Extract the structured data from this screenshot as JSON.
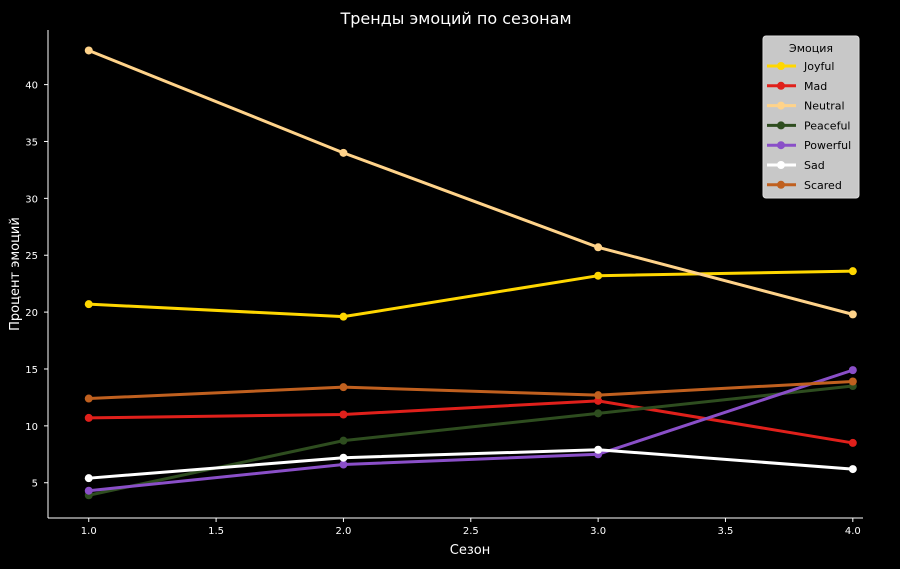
{
  "chart_data": {
    "type": "line",
    "title": "Тренды эмоций по сезонам",
    "xlabel": "Сезон",
    "ylabel": "Процент эмоций",
    "xlim": [
      0.84,
      4.04
    ],
    "ylim": [
      1.9,
      44.8
    ],
    "xticks": [
      1.0,
      1.5,
      2.0,
      2.5,
      3.0,
      3.5,
      4.0
    ],
    "xtick_labels": [
      "1.0",
      "1.5",
      "2.0",
      "2.5",
      "3.0",
      "3.5",
      "4.0"
    ],
    "yticks": [
      5,
      10,
      15,
      20,
      25,
      30,
      35,
      40
    ],
    "ytick_labels": [
      "5",
      "10",
      "15",
      "20",
      "25",
      "30",
      "35",
      "40"
    ],
    "grid": false,
    "legend": {
      "title": "Эмоция",
      "placement": "top-right"
    },
    "x": [
      1,
      2,
      3,
      4
    ],
    "series": [
      {
        "name": "Joyful",
        "color": "#ffd700",
        "values": [
          20.7,
          19.6,
          23.2,
          23.6
        ]
      },
      {
        "name": "Mad",
        "color": "#e0201b",
        "values": [
          10.7,
          11.0,
          12.2,
          8.5
        ]
      },
      {
        "name": "Neutral",
        "color": "#ffd38a",
        "values": [
          43.0,
          34.0,
          25.7,
          19.8
        ]
      },
      {
        "name": "Peaceful",
        "color": "#2e4d1f",
        "values": [
          3.9,
          8.7,
          11.1,
          13.5
        ]
      },
      {
        "name": "Powerful",
        "color": "#8a4fc8",
        "values": [
          4.3,
          6.6,
          7.5,
          14.9
        ]
      },
      {
        "name": "Sad",
        "color": "#ffffff",
        "values": [
          5.4,
          7.2,
          7.9,
          6.2
        ]
      },
      {
        "name": "Scared",
        "color": "#c0601f",
        "values": [
          12.4,
          13.4,
          12.7,
          13.9
        ]
      }
    ]
  }
}
